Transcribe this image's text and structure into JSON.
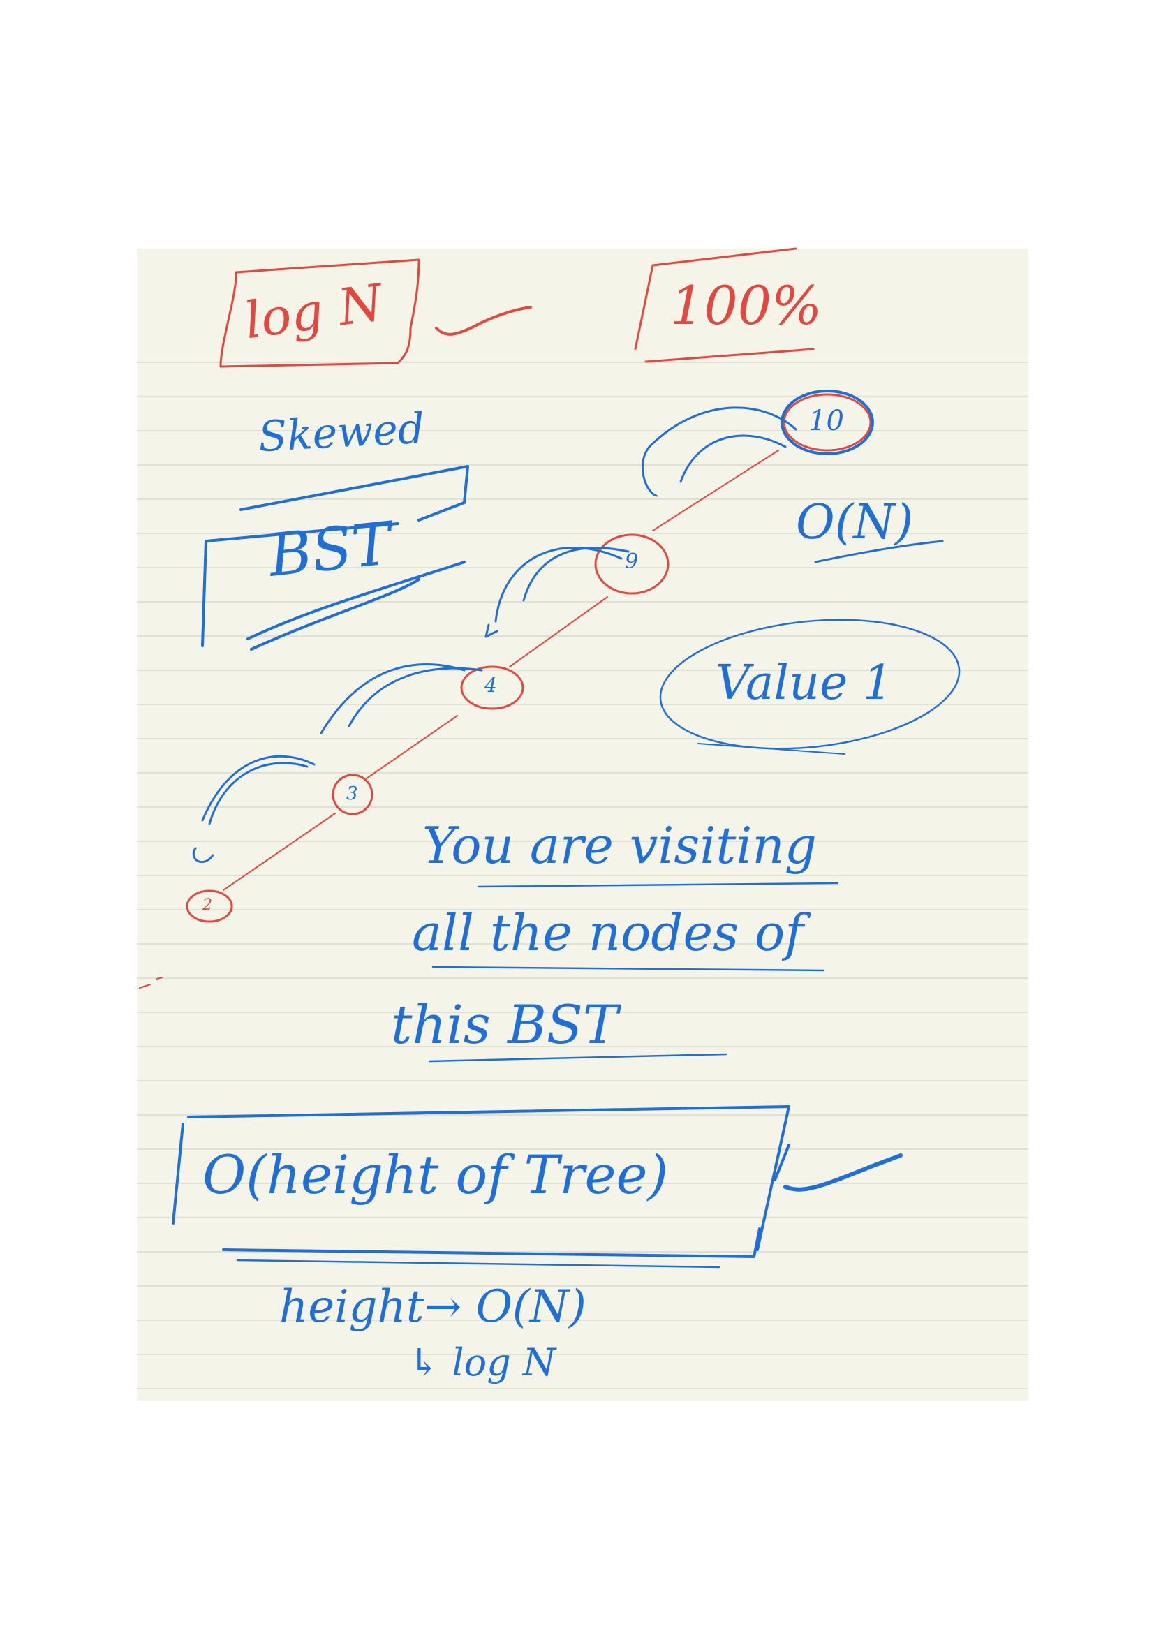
{
  "colors": {
    "paper": "#f5f4e8",
    "rule_line": "#d9d9cf",
    "blue_ink": "#1f6fd6",
    "red_ink": "#e2483f"
  },
  "notes": {
    "log_n_box": "log N",
    "percent_box": "100%",
    "skewed": "Skewed",
    "bst": "BST",
    "o_n": "O(N)",
    "value": "Value 1",
    "visiting_line1": "You are visiting",
    "visiting_line2": "all the nodes of",
    "visiting_line3": "this BST",
    "height_box": "O(height of Tree)",
    "height_line": "height→ O(N)",
    "log_line": "↳ log N"
  },
  "tree": {
    "nodes": [
      "10",
      "9",
      "4",
      "3",
      "2"
    ]
  }
}
